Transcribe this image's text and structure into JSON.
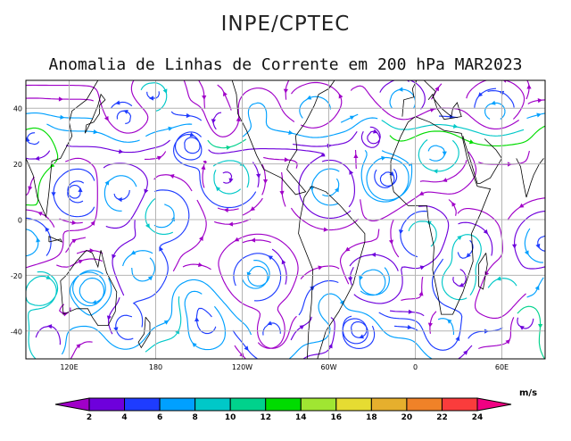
{
  "header": {
    "org": "INPE/CPTEC",
    "title": "Anomalia de Linhas de Corrente em 200 hPa MAR2023"
  },
  "map": {
    "lat_range": [
      -50,
      50
    ],
    "lon_range_east": [
      90,
      450
    ],
    "lat_ticks": [
      {
        "value": 40,
        "label": "40"
      },
      {
        "value": 20,
        "label": "20"
      },
      {
        "value": 0,
        "label": "0"
      },
      {
        "value": -20,
        "label": "-20"
      },
      {
        "value": -40,
        "label": "-40"
      }
    ],
    "lon_ticks": [
      {
        "value": 120,
        "label": "120E"
      },
      {
        "value": 180,
        "label": "180"
      },
      {
        "value": 240,
        "label": "120W"
      },
      {
        "value": 300,
        "label": "60W"
      },
      {
        "value": 360,
        "label": "0"
      },
      {
        "value": 420,
        "label": "60E"
      }
    ],
    "grid": true,
    "grid_color": "#b4b4b4"
  },
  "colorbar": {
    "unit": "m/s",
    "labels": [
      "2",
      "4",
      "6",
      "8",
      "10",
      "12",
      "14",
      "16",
      "18",
      "20",
      "22",
      "24"
    ],
    "colors": [
      "#a000c8",
      "#6e00dc",
      "#1e3cff",
      "#00a0ff",
      "#00c8c8",
      "#00d28c",
      "#00dc00",
      "#a0e632",
      "#e6dc32",
      "#e6af2d",
      "#f08228",
      "#fa3c3c",
      "#f00082"
    ]
  },
  "colors": {
    "coast": "#000000",
    "frame": "#000000"
  }
}
